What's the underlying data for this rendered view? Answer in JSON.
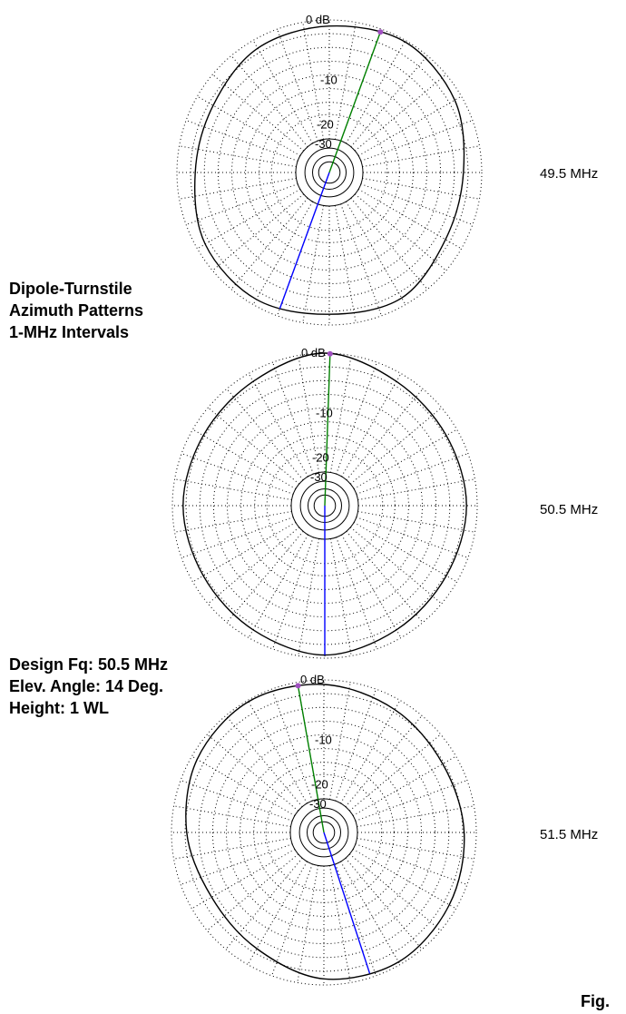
{
  "title_block": {
    "lines": [
      "Dipole-Turnstile",
      "Azimuth Patterns",
      "1-MHz Intervals"
    ]
  },
  "design_block": {
    "lines": [
      "Design Fq:  50.5 MHz",
      "Elev. Angle:  14 Deg.",
      "Height:  1 WL"
    ]
  },
  "figure_label": "Fig.",
  "colors": {
    "grid": "#000000",
    "pattern": "#000000",
    "forward_line": "#008000",
    "rear_line": "#0000ff",
    "marker": "#a050c0"
  },
  "chart_data": [
    {
      "type": "polar",
      "frequency_label": "49.5 MHz",
      "ring_labels": [
        "0 dB",
        "-10",
        "-20",
        "-30"
      ],
      "ring_values_db": [
        0,
        -10,
        -20,
        -30
      ],
      "max_gain_azimuth_deg": 20,
      "rear_azimuth_deg": 200,
      "pattern": {
        "azimuth_deg": [
          0,
          30,
          60,
          90,
          120,
          150,
          180,
          210,
          240,
          270,
          300,
          330
        ],
        "relative_level": [
          0.96,
          0.99,
          0.95,
          0.88,
          0.88,
          0.95,
          0.93,
          0.96,
          0.94,
          0.88,
          0.88,
          0.94
        ]
      }
    },
    {
      "type": "polar",
      "frequency_label": "50.5 MHz",
      "ring_labels": [
        "0 dB",
        "-10",
        "-20",
        "-30"
      ],
      "ring_values_db": [
        0,
        -10,
        -20,
        -30
      ],
      "max_gain_azimuth_deg": 2,
      "rear_azimuth_deg": 180,
      "pattern": {
        "azimuth_deg": [
          0,
          30,
          60,
          90,
          120,
          150,
          180,
          210,
          240,
          270,
          300,
          330
        ],
        "relative_level": [
          1.0,
          0.94,
          0.92,
          0.93,
          0.92,
          0.94,
          0.98,
          0.94,
          0.92,
          0.93,
          0.92,
          0.94
        ]
      }
    },
    {
      "type": "polar",
      "frequency_label": "51.5 MHz",
      "ring_labels": [
        "0 dB",
        "-10",
        "-20",
        "-30"
      ],
      "ring_values_db": [
        0,
        -10,
        -20,
        -30
      ],
      "max_gain_azimuth_deg": -10,
      "rear_azimuth_deg": 162,
      "pattern": {
        "azimuth_deg": [
          0,
          30,
          60,
          90,
          120,
          150,
          180,
          210,
          240,
          270,
          300,
          330
        ],
        "relative_level": [
          0.97,
          0.93,
          0.9,
          0.92,
          0.95,
          0.98,
          0.96,
          0.88,
          0.85,
          0.9,
          0.96,
          0.99
        ]
      }
    }
  ]
}
